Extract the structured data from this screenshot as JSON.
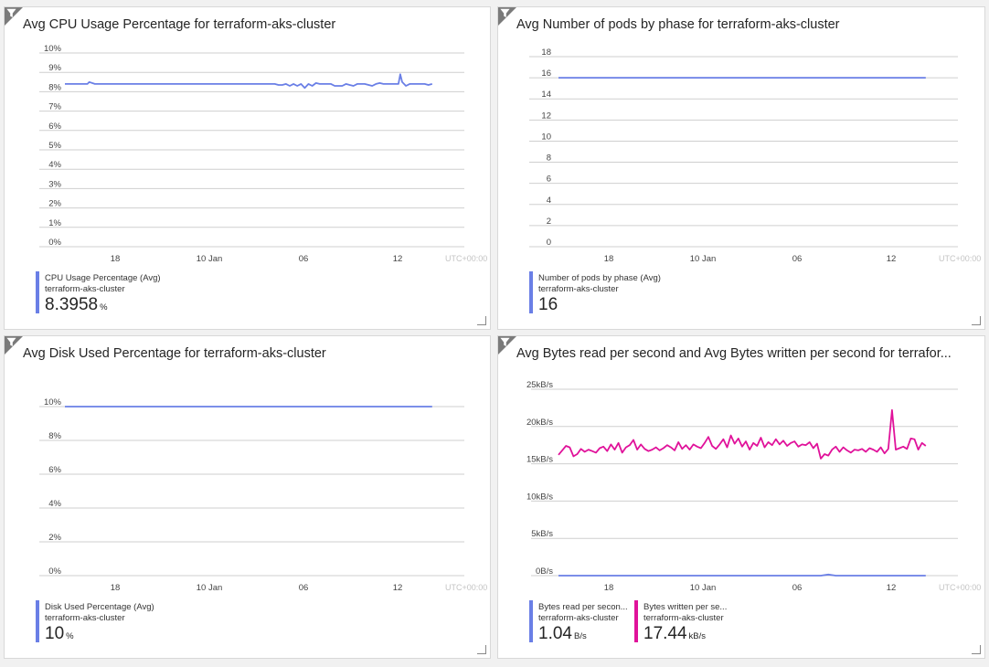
{
  "colors": {
    "blue": "#6a7fe6",
    "magenta": "#e0129a",
    "grid": "#cfcfcf"
  },
  "x_ticks": [
    "18",
    "10 Jan",
    "06",
    "12"
  ],
  "timezone": "UTC+00:00",
  "icons": {
    "filter": "filter-icon",
    "resize": "resize-handle-icon"
  },
  "tiles": [
    {
      "title": "Avg CPU Usage Percentage for terraform-aks-cluster",
      "legend": [
        {
          "name": "CPU Usage Percentage (Avg)",
          "resource": "terraform-aks-cluster",
          "value": "8.3958",
          "unit": "%"
        }
      ]
    },
    {
      "title": "Avg Number of pods by phase for terraform-aks-cluster",
      "legend": [
        {
          "name": "Number of pods by phase (Avg)",
          "resource": "terraform-aks-cluster",
          "value": "16",
          "unit": ""
        }
      ]
    },
    {
      "title": "Avg Disk Used Percentage for terraform-aks-cluster",
      "legend": [
        {
          "name": "Disk Used Percentage (Avg)",
          "resource": "terraform-aks-cluster",
          "value": "10",
          "unit": "%"
        }
      ]
    },
    {
      "title": "Avg Bytes read per second and Avg Bytes written per second for terrafor...",
      "legend": [
        {
          "name": "Bytes read per secon...",
          "resource": "terraform-aks-cluster",
          "value": "1.04",
          "unit": "B/s"
        },
        {
          "name": "Bytes written per se...",
          "resource": "terraform-aks-cluster",
          "value": "17.44",
          "unit": "kB/s"
        }
      ]
    }
  ],
  "chart_data": [
    {
      "type": "line",
      "title": "Avg CPU Usage Percentage for terraform-aks-cluster",
      "y_ticks": [
        "0%",
        "1%",
        "2%",
        "3%",
        "4%",
        "5%",
        "6%",
        "7%",
        "8%",
        "9%",
        "10%"
      ],
      "ylim": [
        0,
        10
      ],
      "grid": true,
      "x_range": [
        0,
        100
      ],
      "series": [
        {
          "name": "CPU Usage Percentage (Avg)",
          "color": "#6a7fe6",
          "x": [
            0,
            4,
            6,
            6.5,
            8,
            10,
            20,
            30,
            40,
            50,
            52,
            54,
            56,
            57,
            58,
            59,
            60,
            61,
            62,
            63,
            64,
            65,
            66,
            67,
            68,
            70,
            71,
            72,
            74,
            75,
            76,
            77,
            78,
            80,
            82,
            83,
            84,
            85,
            86,
            87,
            88,
            89,
            89.5,
            90,
            91,
            92,
            93,
            94,
            95,
            96,
            97,
            98
          ],
          "y": [
            8.4,
            8.4,
            8.4,
            8.5,
            8.4,
            8.4,
            8.4,
            8.4,
            8.4,
            8.4,
            8.4,
            8.4,
            8.4,
            8.35,
            8.35,
            8.4,
            8.3,
            8.4,
            8.3,
            8.4,
            8.2,
            8.4,
            8.3,
            8.45,
            8.4,
            8.4,
            8.4,
            8.3,
            8.3,
            8.4,
            8.35,
            8.3,
            8.4,
            8.4,
            8.3,
            8.4,
            8.45,
            8.4,
            8.4,
            8.4,
            8.4,
            8.4,
            8.9,
            8.5,
            8.3,
            8.4,
            8.4,
            8.4,
            8.4,
            8.4,
            8.35,
            8.4
          ]
        }
      ]
    },
    {
      "type": "line",
      "title": "Avg Number of pods by phase for terraform-aks-cluster",
      "y_ticks": [
        "0",
        "2",
        "4",
        "6",
        "8",
        "10",
        "12",
        "14",
        "16",
        "18"
      ],
      "ylim": [
        0,
        18
      ],
      "grid": true,
      "x_range": [
        0,
        100
      ],
      "series": [
        {
          "name": "Number of pods by phase (Avg)",
          "color": "#6a7fe6",
          "x": [
            0,
            98
          ],
          "y": [
            16,
            16
          ]
        }
      ]
    },
    {
      "type": "line",
      "title": "Avg Disk Used Percentage for terraform-aks-cluster",
      "y_ticks": [
        "0%",
        "2%",
        "4%",
        "6%",
        "8%",
        "10%"
      ],
      "ylim": [
        0,
        10
      ],
      "grid": true,
      "x_range": [
        0,
        100
      ],
      "series": [
        {
          "name": "Disk Used Percentage (Avg)",
          "color": "#6a7fe6",
          "x": [
            0,
            98
          ],
          "y": [
            10,
            10
          ]
        }
      ]
    },
    {
      "type": "line",
      "title": "Avg Bytes read per second and Avg Bytes written per second for terrafor...",
      "y_ticks": [
        "0B/s",
        "5kB/s",
        "10kB/s",
        "15kB/s",
        "20kB/s",
        "25kB/s"
      ],
      "ylim": [
        0,
        25
      ],
      "grid": true,
      "x_range": [
        0,
        100
      ],
      "series": [
        {
          "name": "Bytes read per secon...",
          "color": "#6a7fe6",
          "x": [
            0,
            70,
            72,
            74,
            98
          ],
          "y": [
            0,
            0,
            0.15,
            0,
            0
          ]
        },
        {
          "name": "Bytes written per se...",
          "color": "#e0129a",
          "x": [
            0,
            1,
            2,
            3,
            4,
            5,
            6,
            7,
            8,
            9,
            10,
            11,
            12,
            13,
            14,
            15,
            16,
            17,
            18,
            19,
            20,
            21,
            22,
            23,
            24,
            25,
            26,
            27,
            28,
            29,
            30,
            31,
            32,
            33,
            34,
            35,
            36,
            37,
            38,
            39,
            40,
            41,
            42,
            43,
            44,
            45,
            46,
            47,
            48,
            49,
            50,
            51,
            52,
            53,
            54,
            55,
            56,
            57,
            58,
            59,
            60,
            61,
            62,
            63,
            64,
            65,
            66,
            67,
            68,
            69,
            70,
            71,
            72,
            73,
            74,
            75,
            76,
            77,
            78,
            79,
            80,
            81,
            82,
            83,
            84,
            85,
            86,
            87,
            88,
            89,
            90,
            91,
            92,
            93,
            94,
            95,
            96,
            97,
            98
          ],
          "y": [
            16.2,
            16.8,
            17.4,
            17.2,
            16.0,
            16.3,
            17.0,
            16.6,
            16.9,
            16.7,
            16.5,
            17.1,
            17.3,
            16.7,
            17.6,
            16.9,
            17.8,
            16.5,
            17.2,
            17.5,
            18.2,
            16.9,
            17.6,
            17.0,
            16.7,
            16.9,
            17.2,
            16.8,
            17.1,
            17.5,
            17.2,
            16.8,
            17.9,
            17.0,
            17.5,
            16.9,
            17.6,
            17.3,
            17.1,
            17.8,
            18.6,
            17.4,
            17.0,
            17.6,
            18.3,
            17.2,
            18.8,
            17.7,
            18.4,
            17.3,
            18.0,
            16.9,
            17.8,
            17.4,
            18.5,
            17.2,
            17.9,
            17.5,
            18.3,
            17.6,
            18.1,
            17.4,
            17.8,
            18.0,
            17.3,
            17.6,
            17.5,
            17.9,
            17.1,
            17.7,
            15.7,
            16.3,
            16.1,
            16.9,
            17.3,
            16.6,
            17.2,
            16.8,
            16.5,
            16.9,
            16.8,
            17.0,
            16.6,
            17.1,
            16.9,
            16.6,
            17.2,
            16.4,
            17.0,
            22.2,
            16.9,
            17.1,
            17.3,
            17.0,
            18.4,
            18.3,
            16.9,
            17.8,
            17.4
          ]
        }
      ]
    }
  ]
}
